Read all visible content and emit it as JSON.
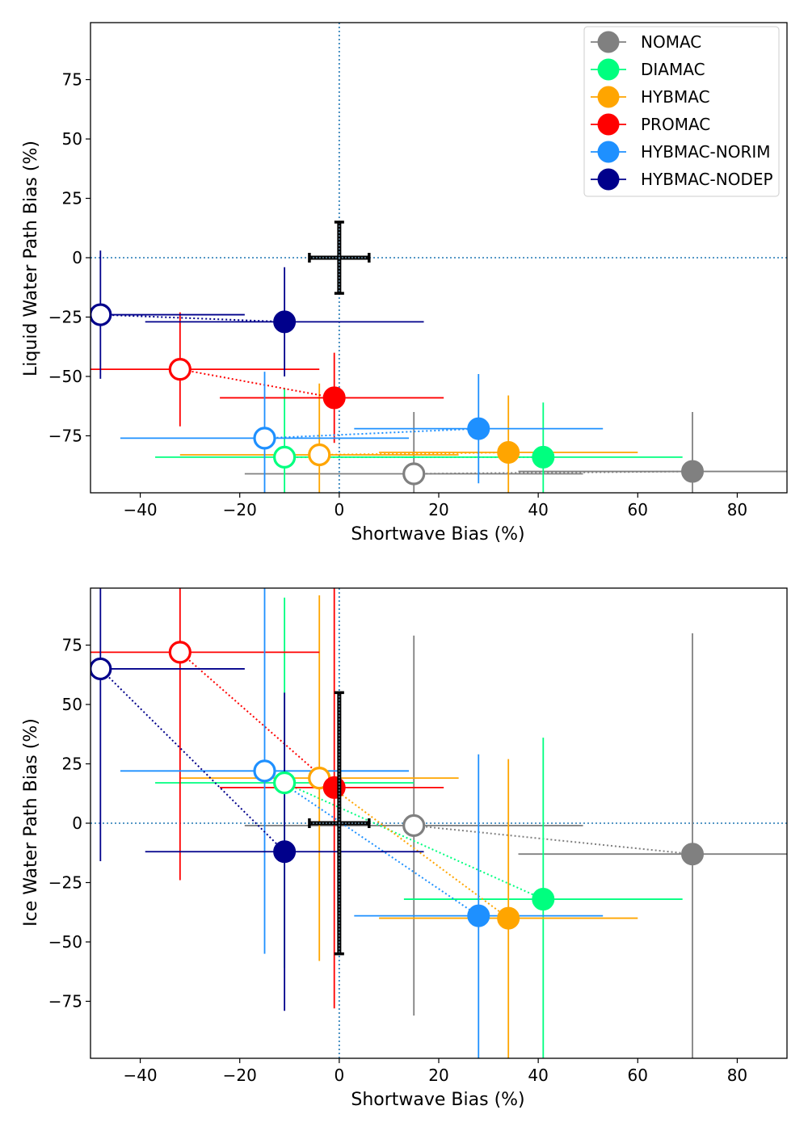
{
  "chart_data": [
    {
      "type": "scatter",
      "xlabel": "Shortwave Bias (%)",
      "ylabel": "Liquid Water Path Bias (%)",
      "xlim": [
        -50,
        90
      ],
      "ylim": [
        -99,
        99
      ],
      "xticks": [
        -40,
        -20,
        0,
        20,
        40,
        60,
        80
      ],
      "yticks": [
        75,
        50,
        25,
        0,
        -25,
        -50,
        -75
      ],
      "legend": "top-right",
      "reference_lines": {
        "x": 0,
        "y": 0
      },
      "observation": {
        "x": 0,
        "y": 0,
        "xerr": 6,
        "yerr": 15
      },
      "series": [
        {
          "name": "NOMAC",
          "color": "#808080",
          "open": {
            "x": 15,
            "y": -91,
            "xerr": [
              34,
              34
            ],
            "yerr": [
              26,
              26
            ]
          },
          "filled": {
            "x": 71,
            "y": -90,
            "xerr": [
              35,
              19
            ],
            "yerr": [
              25,
              25
            ]
          }
        },
        {
          "name": "DIAMAC",
          "color": "#00ff7f",
          "open": {
            "x": -11,
            "y": -84,
            "xerr": [
              26,
              26
            ],
            "yerr": [
              29,
              29
            ]
          },
          "filled": {
            "x": 41,
            "y": -84,
            "xerr": [
              28,
              28
            ],
            "yerr": [
              23,
              23
            ]
          }
        },
        {
          "name": "HYBMAC",
          "color": "#ffa500",
          "open": {
            "x": -4,
            "y": -83,
            "xerr": [
              28,
              28
            ],
            "yerr": [
              30,
              30
            ]
          },
          "filled": {
            "x": 34,
            "y": -82,
            "xerr": [
              26,
              26
            ],
            "yerr": [
              24,
              24
            ]
          }
        },
        {
          "name": "PROMAC",
          "color": "#ff0000",
          "open": {
            "x": -32,
            "y": -47,
            "xerr": [
              28,
              28
            ],
            "yerr": [
              24,
              24
            ]
          },
          "filled": {
            "x": -1,
            "y": -59,
            "xerr": [
              23,
              22
            ],
            "yerr": [
              19,
              19
            ]
          }
        },
        {
          "name": "HYBMAC-NORIM",
          "color": "#1e90ff",
          "open": {
            "x": -15,
            "y": -76,
            "xerr": [
              29,
              29
            ],
            "yerr": [
              28,
              28
            ]
          },
          "filled": {
            "x": 28,
            "y": -72,
            "xerr": [
              25,
              25
            ],
            "yerr": [
              23,
              23
            ]
          }
        },
        {
          "name": "HYBMAC-NODEP",
          "color": "#00008b",
          "open": {
            "x": -48,
            "y": -24,
            "xerr": [
              29,
              29
            ],
            "yerr": [
              27,
              27
            ]
          },
          "filled": {
            "x": -11,
            "y": -27,
            "xerr": [
              28,
              28
            ],
            "yerr": [
              23,
              23
            ]
          }
        }
      ]
    },
    {
      "type": "scatter",
      "xlabel": "Shortwave Bias (%)",
      "ylabel": "Ice Water Path Bias (%)",
      "xlim": [
        -50,
        90
      ],
      "ylim": [
        -99,
        99
      ],
      "xticks": [
        -40,
        -20,
        0,
        20,
        40,
        60,
        80
      ],
      "yticks": [
        75,
        50,
        25,
        0,
        -25,
        -50,
        -75
      ],
      "reference_lines": {
        "x": 0,
        "y": 0
      },
      "observation": {
        "x": 0,
        "y": 0,
        "xerr": 6,
        "yerr": 55
      },
      "series": [
        {
          "name": "NOMAC",
          "color": "#808080",
          "open": {
            "x": 15,
            "y": -1,
            "xerr": [
              34,
              34
            ],
            "yerr": [
              80,
              80
            ]
          },
          "filled": {
            "x": 71,
            "y": -13,
            "xerr": [
              35,
              19
            ],
            "yerr": [
              93,
              93
            ]
          }
        },
        {
          "name": "DIAMAC",
          "color": "#00ff7f",
          "open": {
            "x": -11,
            "y": 17,
            "xerr": [
              26,
              26
            ],
            "yerr": [
              78,
              78
            ]
          },
          "filled": {
            "x": 41,
            "y": -32,
            "xerr": [
              28,
              28
            ],
            "yerr": [
              68,
              68
            ]
          }
        },
        {
          "name": "HYBMAC",
          "color": "#ffa500",
          "open": {
            "x": -4,
            "y": 19,
            "xerr": [
              28,
              28
            ],
            "yerr": [
              77,
              77
            ]
          },
          "filled": {
            "x": 34,
            "y": -40,
            "xerr": [
              26,
              26
            ],
            "yerr": [
              67,
              67
            ]
          }
        },
        {
          "name": "PROMAC",
          "color": "#ff0000",
          "open": {
            "x": -32,
            "y": 72,
            "xerr": [
              28,
              28
            ],
            "yerr": [
              96,
              96
            ]
          },
          "filled": {
            "x": -1,
            "y": 15,
            "xerr": [
              23,
              22
            ],
            "yerr": [
              93,
              93
            ]
          }
        },
        {
          "name": "HYBMAC-NORIM",
          "color": "#1e90ff",
          "open": {
            "x": -15,
            "y": 22,
            "xerr": [
              29,
              29
            ],
            "yerr": [
              77,
              77
            ]
          },
          "filled": {
            "x": 28,
            "y": -39,
            "xerr": [
              25,
              25
            ],
            "yerr": [
              68,
              68
            ]
          }
        },
        {
          "name": "HYBMAC-NODEP",
          "color": "#00008b",
          "open": {
            "x": -48,
            "y": 65,
            "xerr": [
              29,
              29
            ],
            "yerr": [
              81,
              81
            ]
          },
          "filled": {
            "x": -11,
            "y": -12,
            "xerr": [
              28,
              28
            ],
            "yerr": [
              67,
              67
            ]
          }
        }
      ]
    }
  ]
}
